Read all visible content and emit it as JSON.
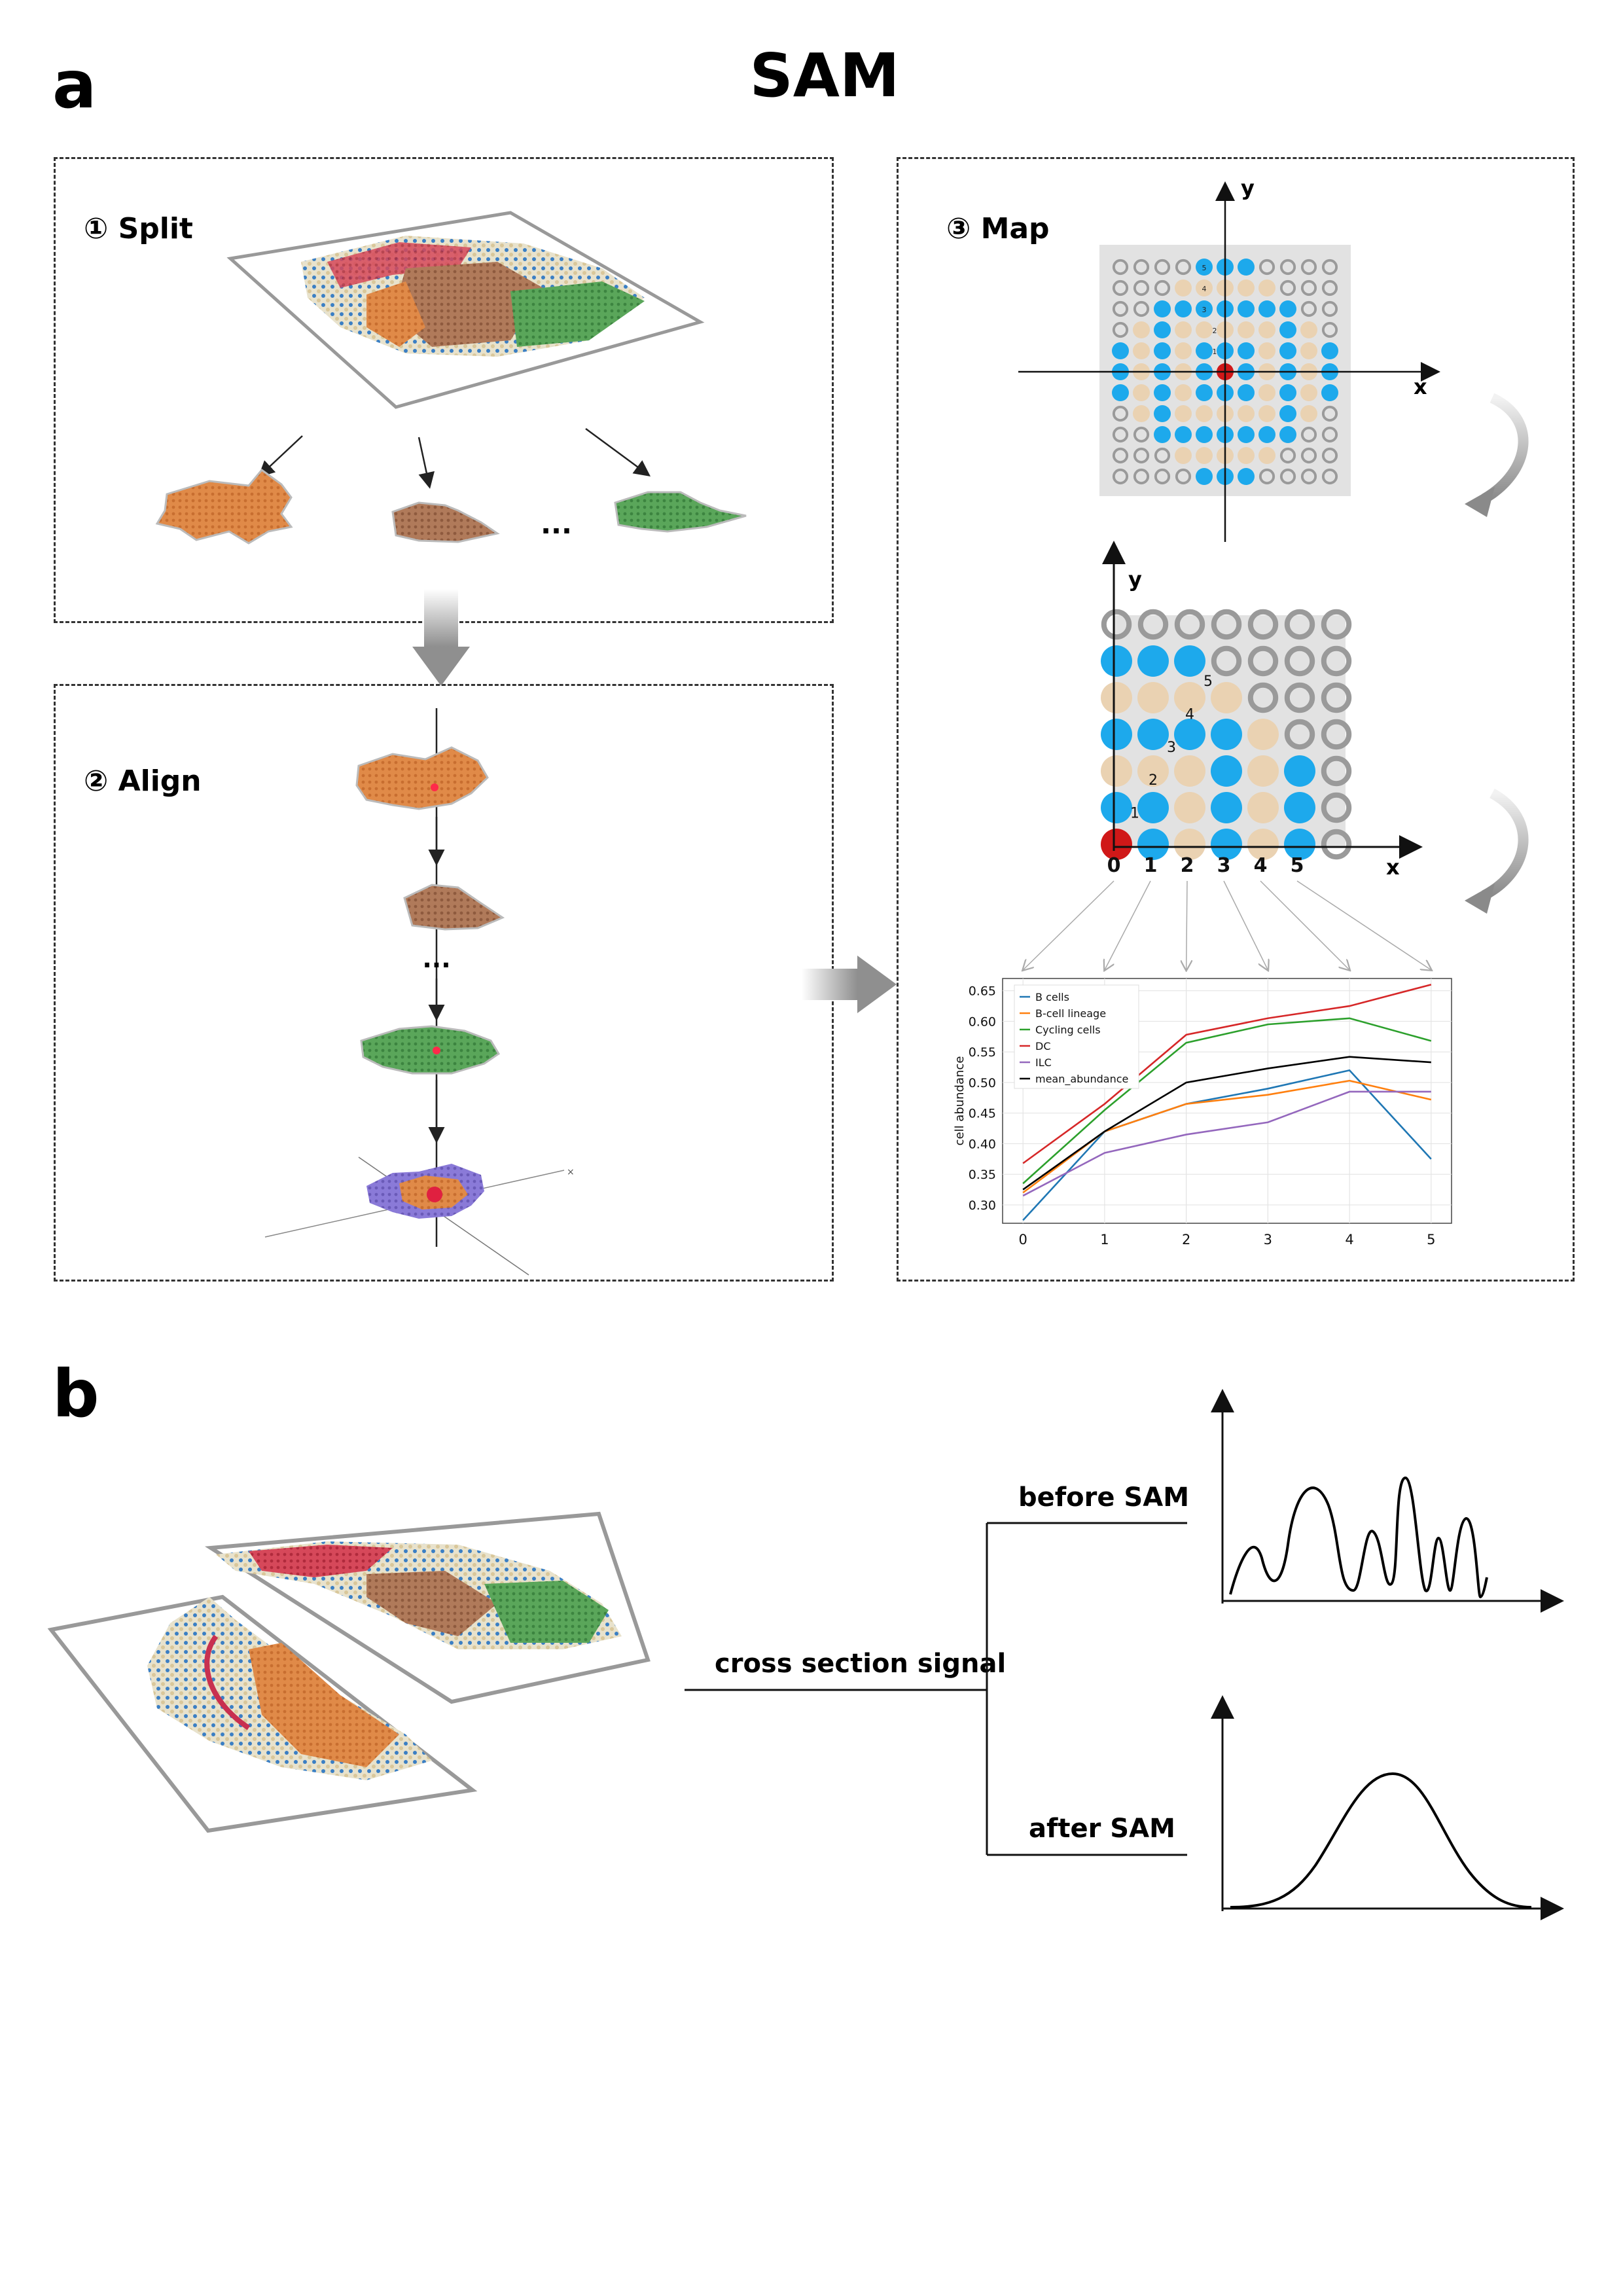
{
  "panel_a": {
    "letter": "a",
    "title": "SAM",
    "steps": {
      "split": "① Split",
      "align": "② Align",
      "map": "③ Map"
    },
    "split_ellipsis": "...",
    "align_ellipsis": "...",
    "grid_axes": {
      "x": "x",
      "y": "y"
    },
    "rings": [
      "1",
      "2",
      "3",
      "4",
      "5"
    ],
    "distance_ticks": [
      "0",
      "1",
      "2",
      "3",
      "4",
      "5"
    ]
  },
  "panel_b": {
    "letter": "b",
    "root_label": "cross section signal",
    "before_label": "before SAM",
    "after_label": "after SAM"
  },
  "colors": {
    "blue_spot": "#1da9ec",
    "tan_spot": "#ead2b2",
    "grey_ring": "#9a9a9a",
    "center_red": "#d01818",
    "orange_region": "#e08a48",
    "brown_region": "#a86a4a",
    "green_region": "#4e9a52",
    "purple_region": "#8a7ad8"
  },
  "chart_data": {
    "type": "line",
    "x": [
      0,
      1,
      2,
      3,
      4,
      5
    ],
    "xticks": [
      "0",
      "1",
      "2",
      "3",
      "4",
      "5"
    ],
    "yticks": [
      "0.30",
      "0.35",
      "0.40",
      "0.45",
      "0.50",
      "0.55",
      "0.60",
      "0.65"
    ],
    "ylim": [
      0.27,
      0.67
    ],
    "xlim": [
      -0.25,
      5.25
    ],
    "xlabel": "",
    "ylabel": "cell abundance",
    "grid": true,
    "legend_position": "upper-left",
    "series": [
      {
        "name": "B cells",
        "color": "#1f77b4",
        "values": [
          0.275,
          0.42,
          0.465,
          0.49,
          0.52,
          0.375
        ]
      },
      {
        "name": "B-cell lineage",
        "color": "#ff7f0e",
        "values": [
          0.32,
          0.42,
          0.465,
          0.48,
          0.503,
          0.472
        ]
      },
      {
        "name": "Cycling cells",
        "color": "#2ca02c",
        "values": [
          0.335,
          0.455,
          0.565,
          0.595,
          0.605,
          0.568
        ]
      },
      {
        "name": "DC",
        "color": "#d62728",
        "values": [
          0.368,
          0.465,
          0.578,
          0.605,
          0.625,
          0.66
        ]
      },
      {
        "name": "ILC",
        "color": "#9467bd",
        "values": [
          0.315,
          0.385,
          0.415,
          0.435,
          0.485,
          0.485
        ]
      },
      {
        "name": "mean_abundance",
        "color": "#000000",
        "values": [
          0.325,
          0.42,
          0.5,
          0.523,
          0.542,
          0.533
        ]
      }
    ]
  }
}
